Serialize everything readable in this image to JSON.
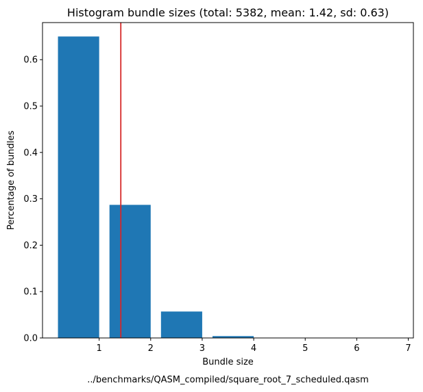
{
  "chart_data": {
    "type": "bar",
    "title": "Histogram bundle sizes (total: 5382, mean: 1.42, sd: 0.63)",
    "xlabel": "Bundle size",
    "ylabel": "Percentage of bundles",
    "caption": "../benchmarks/QASM_compiled/square_root_7_scheduled.qasm",
    "bars": [
      {
        "x": 0.6,
        "value": 0.65
      },
      {
        "x": 1.6,
        "value": 0.287
      },
      {
        "x": 2.6,
        "value": 0.057
      },
      {
        "x": 3.6,
        "value": 0.004
      }
    ],
    "bar_width": 0.8,
    "bar_color": "#1f77b4",
    "mean_line": {
      "x": 1.42,
      "color": "#d62728"
    },
    "xlim": [
      -0.1,
      7.1
    ],
    "ylim": [
      0,
      0.68
    ],
    "xticks": [
      1,
      2,
      3,
      4,
      5,
      6,
      7
    ],
    "yticks": [
      0.0,
      0.1,
      0.2,
      0.3,
      0.4,
      0.5,
      0.6
    ],
    "ytick_labels": [
      "0.0",
      "0.1",
      "0.2",
      "0.3",
      "0.4",
      "0.5",
      "0.6"
    ],
    "grid": false
  }
}
